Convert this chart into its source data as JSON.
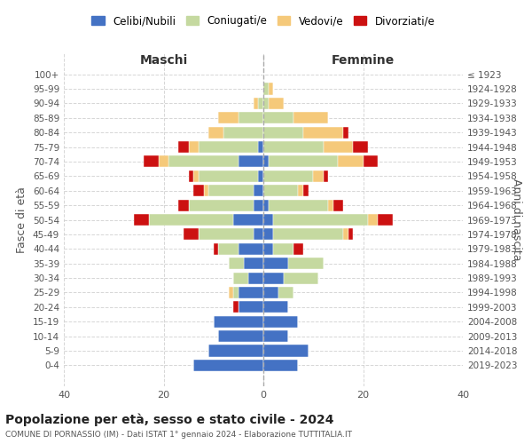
{
  "age_groups": [
    "0-4",
    "5-9",
    "10-14",
    "15-19",
    "20-24",
    "25-29",
    "30-34",
    "35-39",
    "40-44",
    "45-49",
    "50-54",
    "55-59",
    "60-64",
    "65-69",
    "70-74",
    "75-79",
    "80-84",
    "85-89",
    "90-94",
    "95-99",
    "100+"
  ],
  "birth_years": [
    "2019-2023",
    "2014-2018",
    "2009-2013",
    "2004-2008",
    "1999-2003",
    "1994-1998",
    "1989-1993",
    "1984-1988",
    "1979-1983",
    "1974-1978",
    "1969-1973",
    "1964-1968",
    "1959-1963",
    "1954-1958",
    "1949-1953",
    "1944-1948",
    "1939-1943",
    "1934-1938",
    "1929-1933",
    "1924-1928",
    "≤ 1923"
  ],
  "colors": {
    "celibe": "#4472c4",
    "coniugato": "#c5d9a0",
    "vedovo": "#f5c97a",
    "divorziato": "#cc1111"
  },
  "maschi": {
    "celibe": [
      14,
      11,
      9,
      10,
      5,
      5,
      3,
      4,
      5,
      2,
      6,
      2,
      2,
      1,
      5,
      1,
      0,
      0,
      0,
      0,
      0
    ],
    "coniugato": [
      0,
      0,
      0,
      0,
      0,
      1,
      3,
      3,
      4,
      11,
      17,
      13,
      9,
      12,
      14,
      12,
      8,
      5,
      1,
      0,
      0
    ],
    "vedovo": [
      0,
      0,
      0,
      0,
      0,
      1,
      0,
      0,
      0,
      0,
      0,
      0,
      1,
      1,
      2,
      2,
      3,
      4,
      1,
      0,
      0
    ],
    "divorziato": [
      0,
      0,
      0,
      0,
      1,
      0,
      0,
      0,
      1,
      3,
      3,
      2,
      2,
      1,
      3,
      2,
      0,
      0,
      0,
      0,
      0
    ]
  },
  "femmine": {
    "celibe": [
      7,
      9,
      5,
      7,
      5,
      3,
      4,
      5,
      2,
      2,
      2,
      1,
      0,
      0,
      1,
      0,
      0,
      0,
      0,
      0,
      0
    ],
    "coniugato": [
      0,
      0,
      0,
      0,
      0,
      3,
      7,
      7,
      4,
      14,
      19,
      12,
      7,
      10,
      14,
      12,
      8,
      6,
      1,
      1,
      0
    ],
    "vedovo": [
      0,
      0,
      0,
      0,
      0,
      0,
      0,
      0,
      0,
      1,
      2,
      1,
      1,
      2,
      5,
      6,
      8,
      7,
      3,
      1,
      0
    ],
    "divorziato": [
      0,
      0,
      0,
      0,
      0,
      0,
      0,
      0,
      2,
      1,
      3,
      2,
      1,
      1,
      3,
      3,
      1,
      0,
      0,
      0,
      0
    ]
  },
  "title": "Popolazione per età, sesso e stato civile - 2024",
  "subtitle": "COMUNE DI PORNASSIO (IM) - Dati ISTAT 1° gennaio 2024 - Elaborazione TUTTITALIA.IT",
  "xlabel_left": "Maschi",
  "xlabel_right": "Femmine",
  "ylabel_left": "Fasce di età",
  "ylabel_right": "Anni di nascita",
  "xlim": 40,
  "legend_labels": [
    "Celibi/Nubili",
    "Coniugati/e",
    "Vedovi/e",
    "Divorziati/e"
  ],
  "background_color": "#ffffff",
  "grid_color": "#cccccc"
}
